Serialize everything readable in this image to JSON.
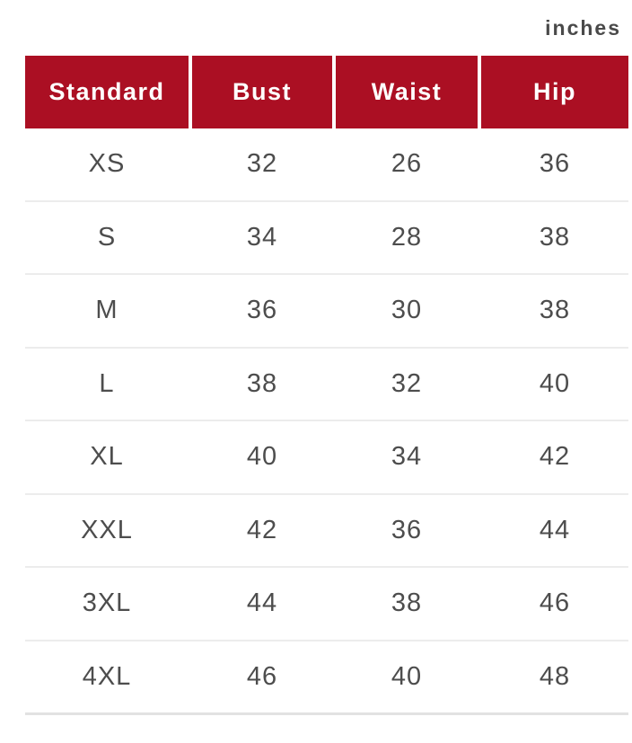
{
  "unit_label": "inches",
  "colors": {
    "header_bg": "#AB0F23",
    "header_text": "#FFFFFF",
    "body_text": "#4D4D4D",
    "divider": "#ECECEC",
    "unit_text": "#4A4A4A"
  },
  "table": {
    "headers": [
      "Standard",
      "Bust",
      "Waist",
      "Hip"
    ],
    "rows": [
      [
        "XS",
        "32",
        "26",
        "36"
      ],
      [
        "S",
        "34",
        "28",
        "38"
      ],
      [
        "M",
        "36",
        "30",
        "38"
      ],
      [
        "L",
        "38",
        "32",
        "40"
      ],
      [
        "XL",
        "40",
        "34",
        "42"
      ],
      [
        "XXL",
        "42",
        "36",
        "44"
      ],
      [
        "3XL",
        "44",
        "38",
        "46"
      ],
      [
        "4XL",
        "46",
        "40",
        "48"
      ]
    ]
  }
}
